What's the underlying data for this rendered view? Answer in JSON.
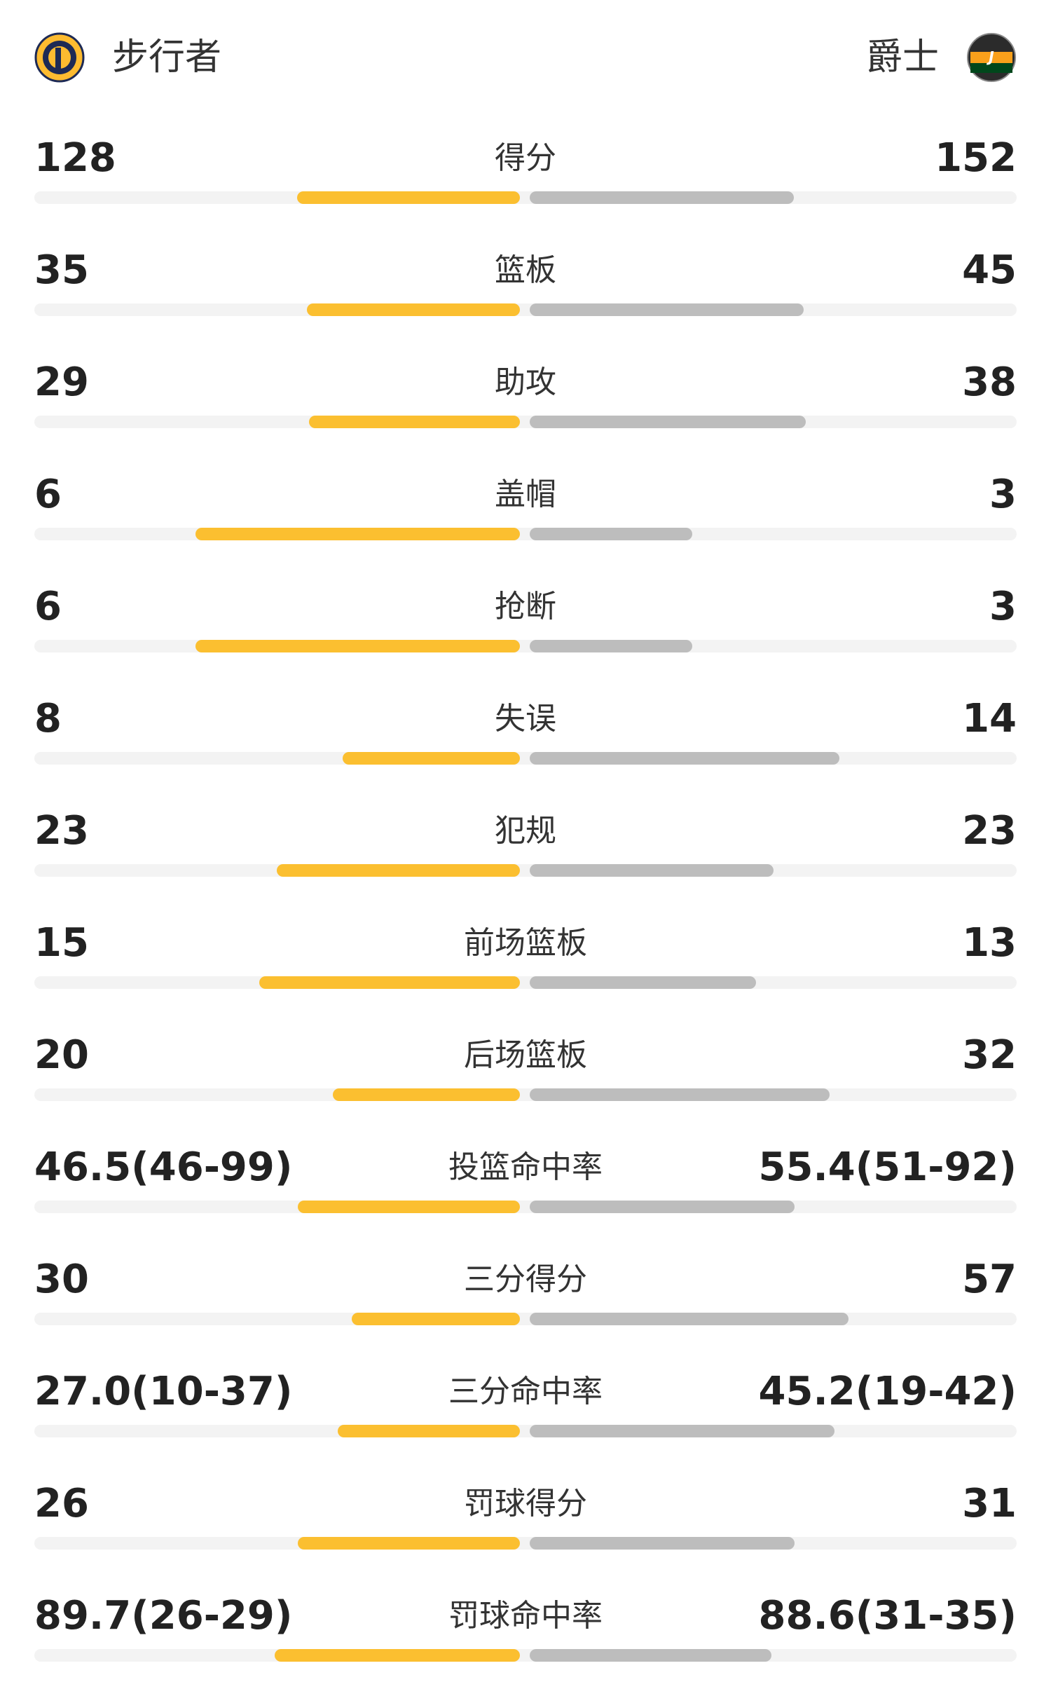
{
  "header": {
    "home_team": "步行者",
    "away_team": "爵士"
  },
  "stats": [
    {
      "name": "得分",
      "home": 128,
      "away": 152
    },
    {
      "name": "篮板",
      "home": 35,
      "away": 45
    },
    {
      "name": "助攻",
      "home": 29,
      "away": 38
    },
    {
      "name": "盖帽",
      "home": 6,
      "away": 3
    },
    {
      "name": "抢断",
      "home": 6,
      "away": 3
    },
    {
      "name": "失误",
      "home": 8,
      "away": 14
    },
    {
      "name": "犯规",
      "home": 23,
      "away": 23
    },
    {
      "name": "前场篮板",
      "home": 15,
      "away": 13
    },
    {
      "name": "后场篮板",
      "home": 20,
      "away": 32
    },
    {
      "name": "投篮命中率",
      "home": {
        "value": 46.5,
        "label": "46.5(46-99)"
      },
      "away": {
        "value": 55.4,
        "label": "55.4(51-92)"
      }
    },
    {
      "name": "三分得分",
      "home": 30,
      "away": 57
    },
    {
      "name": "三分命中率",
      "home": {
        "value": 27.0,
        "label": "27.0(10-37)"
      },
      "away": {
        "value": 45.2,
        "label": "45.2(19-42)"
      }
    },
    {
      "name": "罚球得分",
      "home": 26,
      "away": 31
    },
    {
      "name": "罚球命中率",
      "home": {
        "value": 89.7,
        "label": "89.7(26-29)"
      },
      "away": {
        "value": 88.6,
        "label": "88.6(31-35)"
      }
    }
  ]
}
